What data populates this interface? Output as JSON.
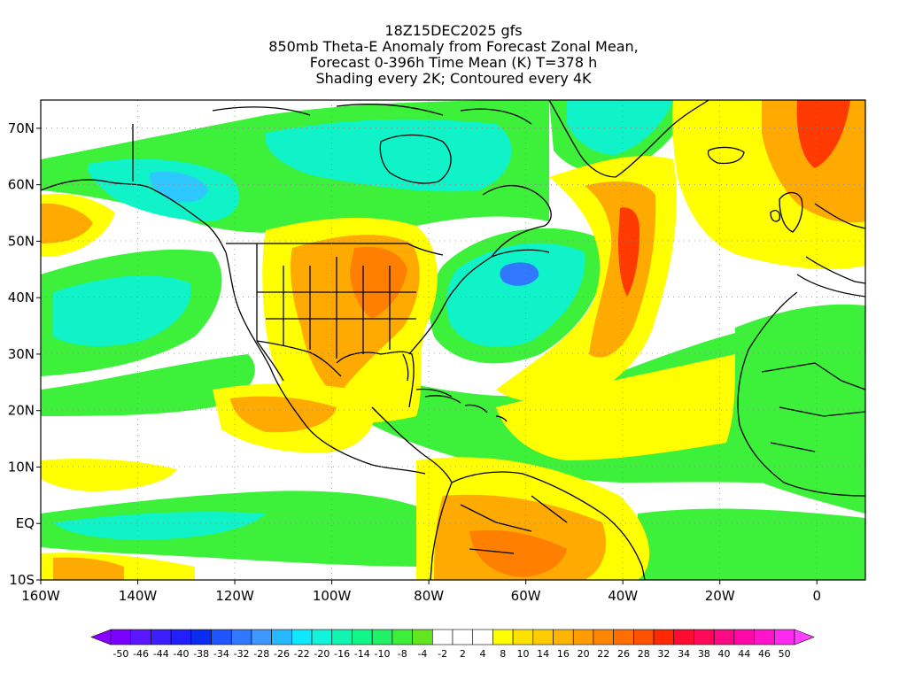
{
  "title": {
    "line1": "18Z15DEC2025 gfs",
    "line2": "850mb Theta-E Anomaly from Forecast Zonal Mean,",
    "line3": "Forecast 0-396h Time Mean (K) T=378 h",
    "line4": "Shading every 2K; Contoured every 4K"
  },
  "map": {
    "lon_range": [
      -160,
      10
    ],
    "lat_range": [
      -10,
      75
    ],
    "lat_ticks": [
      {
        "value": 70,
        "label": "70N"
      },
      {
        "value": 60,
        "label": "60N"
      },
      {
        "value": 50,
        "label": "50N"
      },
      {
        "value": 40,
        "label": "40N"
      },
      {
        "value": 30,
        "label": "30N"
      },
      {
        "value": 20,
        "label": "20N"
      },
      {
        "value": 10,
        "label": "10N"
      },
      {
        "value": 0,
        "label": "EQ"
      },
      {
        "value": -10,
        "label": "10S"
      }
    ],
    "lon_ticks": [
      {
        "value": -160,
        "label": "160W"
      },
      {
        "value": -140,
        "label": "140W"
      },
      {
        "value": -120,
        "label": "120W"
      },
      {
        "value": -100,
        "label": "100W"
      },
      {
        "value": -80,
        "label": "80W"
      },
      {
        "value": -60,
        "label": "60W"
      },
      {
        "value": -40,
        "label": "40W"
      },
      {
        "value": -20,
        "label": "20W"
      },
      {
        "value": 0,
        "label": "0"
      }
    ]
  },
  "colorbar": {
    "labels": [
      "-50",
      "-46",
      "-44",
      "-40",
      "-38",
      "-34",
      "-32",
      "-28",
      "-26",
      "-22",
      "-20",
      "-16",
      "-14",
      "-10",
      "-8",
      "-4",
      "-2",
      "2",
      "4",
      "8",
      "10",
      "14",
      "16",
      "20",
      "22",
      "26",
      "28",
      "32",
      "34",
      "38",
      "40",
      "44",
      "46",
      "50"
    ],
    "colors": [
      "#7a00ff",
      "#5c16ff",
      "#3d1eff",
      "#2020ff",
      "#0a2bf0",
      "#1f55ff",
      "#2f78ff",
      "#3d98ff",
      "#27b9ff",
      "#0ee8ff",
      "#10f5da",
      "#10f5b0",
      "#12f58a",
      "#22f066",
      "#3dee3a",
      "#62e61e",
      "#ffffff",
      "#ffffff",
      "#ffffff",
      "#ffff00",
      "#ffe100",
      "#ffcc00",
      "#ffb500",
      "#ff9d00",
      "#ff8600",
      "#ff6e00",
      "#ff5200",
      "#ff2800",
      "#ff0a32",
      "#ff0a5a",
      "#ff0a85",
      "#ff0aa8",
      "#ff14cc",
      "#ff2af0"
    ]
  },
  "colors": {
    "green": "#3df03a",
    "cyan": "#10f2c8",
    "light_blue": "#2dc8ff",
    "blue": "#2f78ff",
    "yellow": "#ffff00",
    "yellow_orange": "#ffd300",
    "orange": "#ffaa00",
    "deep_orange": "#ff8000",
    "red_orange": "#ff3a00",
    "white": "#ffffff"
  }
}
